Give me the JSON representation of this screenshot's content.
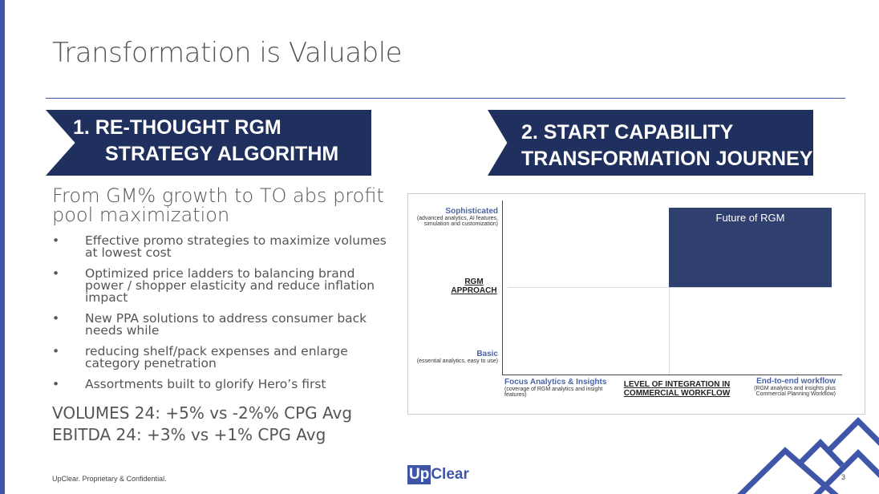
{
  "slide": {
    "title": "Transformation is Valuable",
    "page_number": "3",
    "footer": "UpClear. Proprietary & Confidential.",
    "logo": {
      "up": "Up",
      "clear": "Clear"
    }
  },
  "banner1": {
    "line1": "1.  RE-THOUGHT RGM",
    "line2": "STRATEGY ALGORITHM"
  },
  "banner2": {
    "line1": "2. START CAPABILITY",
    "line2": "TRANSFORMATION JOURNEY"
  },
  "left": {
    "subtitle": "From GM% growth to TO abs profit pool maximization",
    "bullets": [
      "Effective promo strategies to maximize volumes at lowest cost",
      "Optimized price ladders to balancing brand power / shopper elasticity and reduce inflation impact",
      "New PPA solutions to address consumer back needs while",
      "reducing shelf/pack expenses and enlarge category penetration",
      "Assortments built to glorify Hero’s first"
    ],
    "stat1": "VOLUMES 24: +5% vs -2%% CPG Avg",
    "stat2": "EBITDA 24: +3% vs +1% CPG Avg"
  },
  "matrix": {
    "top_label": "Sophisticated",
    "top_desc": "(advanced analytics, AI features, simulation and customization)",
    "y_axis": "RGM APPROACH",
    "bottom_label": "Basic",
    "bottom_desc": "(essential analytics, easy to use)",
    "left_label": "Focus Analytics & Insights",
    "left_desc": "(coverage of RGM analytics and insight features)",
    "x_axis": "LEVEL OF INTEGRATION IN COMMERCIAL WORKFLOW",
    "right_label": "End-to-end workflow",
    "right_desc": "(RGM analytics and insights plus Commercial Planning Workflow)",
    "box": "Future of RGM"
  },
  "colors": {
    "accent": "#3f56a8",
    "navy": "#1f2f5e",
    "box": "#2f3f6e"
  }
}
